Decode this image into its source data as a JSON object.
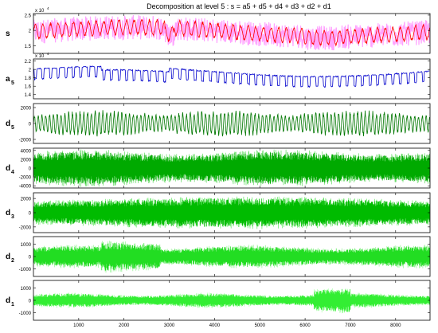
{
  "figure": {
    "title": "Decomposition at level 5 : s = a5 + d5 + d4 + d3 + d2 + d1"
  },
  "chart_data": {
    "type": "line",
    "title": "Decomposition at level 5 : s = a5 + d5 + d4 + d3 + d2 + d1",
    "xlim": [
      0,
      8760
    ],
    "xticks": [
      1000,
      2000,
      3000,
      4000,
      5000,
      6000,
      7000,
      8000
    ],
    "grid": false,
    "panels": [
      {
        "id": "s",
        "label": "s",
        "sub": "",
        "color": "#ff0000",
        "band_color": "#ff66ff",
        "ylim": [
          1.25,
          2.55
        ],
        "exponent": "x 10",
        "exp_power": "4",
        "yticks": [
          1.5,
          2,
          2.5
        ],
        "ytick_labels": [
          "1.5",
          "2",
          "2.5"
        ],
        "style": "signal"
      },
      {
        "id": "a5",
        "label": "a",
        "sub": "5",
        "color": "#0000cc",
        "band_color": "",
        "ylim": [
          1.3,
          2.25
        ],
        "exponent": "x 10",
        "exp_power": "4",
        "yticks": [
          1.4,
          1.6,
          1.8,
          2,
          2.2
        ],
        "ytick_labels": [
          "1.4",
          "1.6",
          "1.8",
          "2",
          "2.2"
        ],
        "style": "approx"
      },
      {
        "id": "d5",
        "label": "d",
        "sub": "5",
        "color": "#007700",
        "band_color": "",
        "ylim": [
          -2500,
          2500
        ],
        "exponent": "",
        "exp_power": "",
        "yticks": [
          -2000,
          0,
          2000
        ],
        "ytick_labels": [
          "-2000",
          "0",
          "2000"
        ],
        "style": "sparse"
      },
      {
        "id": "d4",
        "label": "d",
        "sub": "4",
        "color": "#00aa00",
        "band_color": "#22cc22",
        "ylim": [
          -4500,
          4500
        ],
        "exponent": "",
        "exp_power": "",
        "yticks": [
          -4000,
          -2000,
          0,
          2000,
          4000
        ],
        "ytick_labels": [
          "-4000",
          "-2000",
          "0",
          "2000",
          "4000"
        ],
        "style": "dense"
      },
      {
        "id": "d3",
        "label": "d",
        "sub": "3",
        "color": "#00bb00",
        "band_color": "#22dd22",
        "ylim": [
          -2800,
          2800
        ],
        "exponent": "",
        "exp_power": "",
        "yticks": [
          -2000,
          0,
          2000
        ],
        "ytick_labels": [
          "-2000",
          "0",
          "2000"
        ],
        "style": "dense"
      },
      {
        "id": "d2",
        "label": "d",
        "sub": "2",
        "color": "#22dd22",
        "band_color": "#66ee66",
        "ylim": [
          -1600,
          1600
        ],
        "exponent": "",
        "exp_power": "",
        "yticks": [
          -1000,
          0,
          1000
        ],
        "ytick_labels": [
          "-1000",
          "0",
          "1000"
        ],
        "style": "dense"
      },
      {
        "id": "d1",
        "label": "d",
        "sub": "1",
        "color": "#33ee33",
        "band_color": "#88ff88",
        "ylim": [
          -1600,
          1600
        ],
        "exponent": "",
        "exp_power": "",
        "yticks": [
          -1000,
          0,
          1000
        ],
        "ytick_labels": [
          "-1000",
          "0",
          "1000"
        ],
        "style": "dense"
      }
    ]
  }
}
